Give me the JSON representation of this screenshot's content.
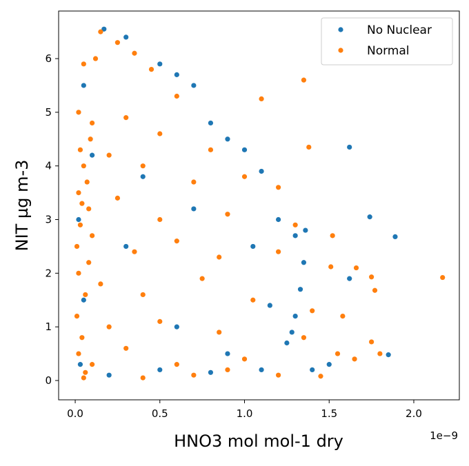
{
  "chart_data": {
    "type": "scatter",
    "xlabel": "HNO3 mol mol-1 dry",
    "ylabel": "NIT µg m-3",
    "x_offset_label": "1e−9",
    "xlim": [
      -0.098,
      2.269
    ],
    "ylim": [
      -0.36,
      6.887
    ],
    "xticks": [
      {
        "value": 0,
        "label": "0.0"
      },
      0.5,
      {
        "value": 1,
        "label": "1.0"
      },
      1.5,
      {
        "value": 2,
        "label": "2.0"
      }
    ],
    "yticks": [
      0,
      1,
      2,
      3,
      4,
      5,
      6
    ],
    "grid": false,
    "legend": "upper right",
    "series": [
      {
        "name": "No Nuclear",
        "color": "#1f77b4",
        "x": [
          0.17,
          0.3,
          0.5,
          0.6,
          0.7,
          0.8,
          0.9,
          1.0,
          1.1,
          1.2,
          1.3,
          1.35,
          1.33,
          1.3,
          1.25,
          1.62,
          1.74,
          1.89,
          1.62,
          1.85,
          1.5,
          1.1,
          0.05,
          0.1,
          0.02,
          0.05,
          0.03,
          0.3,
          0.6,
          0.9,
          1.15,
          1.05,
          0.4,
          0.7,
          0.2,
          0.5,
          0.8,
          1.36,
          1.28,
          1.4
        ],
        "values": [
          6.55,
          6.4,
          5.9,
          5.7,
          5.5,
          4.8,
          4.5,
          4.3,
          3.9,
          3.0,
          2.7,
          2.2,
          1.7,
          1.2,
          0.7,
          4.35,
          3.05,
          2.68,
          1.9,
          0.48,
          0.3,
          0.2,
          5.5,
          4.2,
          3.0,
          1.5,
          0.3,
          2.5,
          1.0,
          0.5,
          1.4,
          2.5,
          3.8,
          3.2,
          0.1,
          0.2,
          0.15,
          2.8,
          0.9,
          0.2
        ]
      },
      {
        "name": "Normal",
        "color": "#ff7f0e",
        "x": [
          0.15,
          0.25,
          0.35,
          0.12,
          0.05,
          0.45,
          1.35,
          1.1,
          0.6,
          0.02,
          0.1,
          0.3,
          0.5,
          0.8,
          1.38,
          0.03,
          0.05,
          0.2,
          0.4,
          0.7,
          1.0,
          1.2,
          0.02,
          0.08,
          0.25,
          0.5,
          0.9,
          1.3,
          1.52,
          0.01,
          0.1,
          0.35,
          0.6,
          0.85,
          1.2,
          1.51,
          1.66,
          1.75,
          2.17,
          1.77,
          0.02,
          0.15,
          0.4,
          0.75,
          1.05,
          1.4,
          1.58,
          0.01,
          0.2,
          0.5,
          0.85,
          1.35,
          1.55,
          1.65,
          1.8,
          1.75,
          0.02,
          0.1,
          0.3,
          0.6,
          0.9,
          1.2,
          1.45,
          0.05,
          0.4,
          0.7,
          1.0,
          0.04,
          0.06,
          0.08,
          0.03,
          0.07,
          0.09,
          0.04,
          0.06
        ],
        "values": [
          6.5,
          6.3,
          6.1,
          6.0,
          5.9,
          5.8,
          5.6,
          5.25,
          5.3,
          5.0,
          4.8,
          4.9,
          4.6,
          4.3,
          4.35,
          4.3,
          4.0,
          4.2,
          4.0,
          3.7,
          3.8,
          3.6,
          3.5,
          3.2,
          3.4,
          3.0,
          3.1,
          2.9,
          2.7,
          2.5,
          2.7,
          2.4,
          2.6,
          2.3,
          2.4,
          2.12,
          2.1,
          1.93,
          1.92,
          1.68,
          2.0,
          1.8,
          1.6,
          1.9,
          1.5,
          1.3,
          1.2,
          1.2,
          1.0,
          1.1,
          0.9,
          0.8,
          0.5,
          0.4,
          0.5,
          0.72,
          0.5,
          0.3,
          0.6,
          0.3,
          0.2,
          0.1,
          0.08,
          0.05,
          0.05,
          0.1,
          0.4,
          0.8,
          1.6,
          2.2,
          2.9,
          3.7,
          4.5,
          3.3,
          0.15
        ]
      }
    ]
  }
}
